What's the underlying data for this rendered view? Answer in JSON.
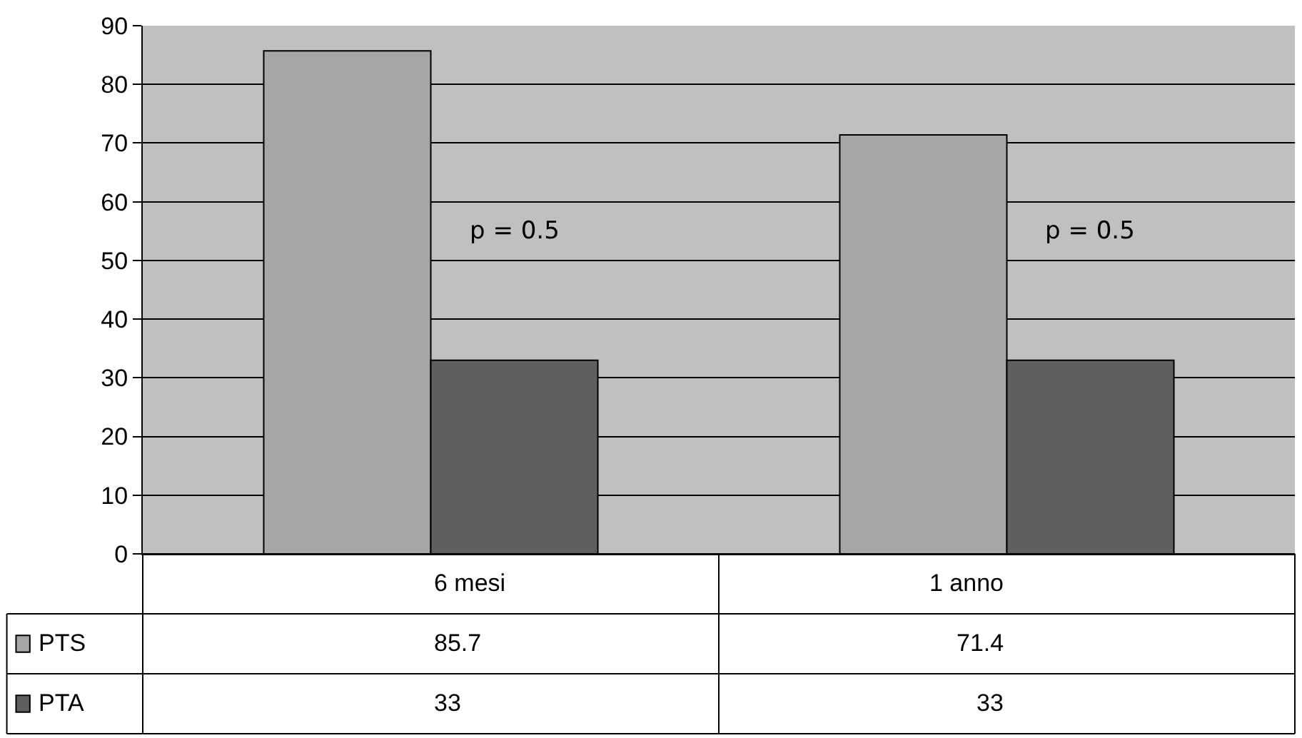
{
  "chart_data": {
    "type": "bar",
    "categories": [
      "6 mesi",
      "1 anno"
    ],
    "series": [
      {
        "name": "PTS",
        "color": "#a6a6a6",
        "values": [
          85.7,
          71.4
        ]
      },
      {
        "name": "PTA",
        "color": "#5f5f5f",
        "values": [
          33,
          33
        ]
      }
    ],
    "ylim": [
      0,
      90
    ],
    "yticks": [
      0,
      10,
      20,
      30,
      40,
      50,
      60,
      70,
      80,
      90
    ],
    "grid": "y",
    "data_labels": true,
    "legend": "bottom left",
    "annotations": [
      "p = 0.5",
      "p = 0.5"
    ]
  }
}
